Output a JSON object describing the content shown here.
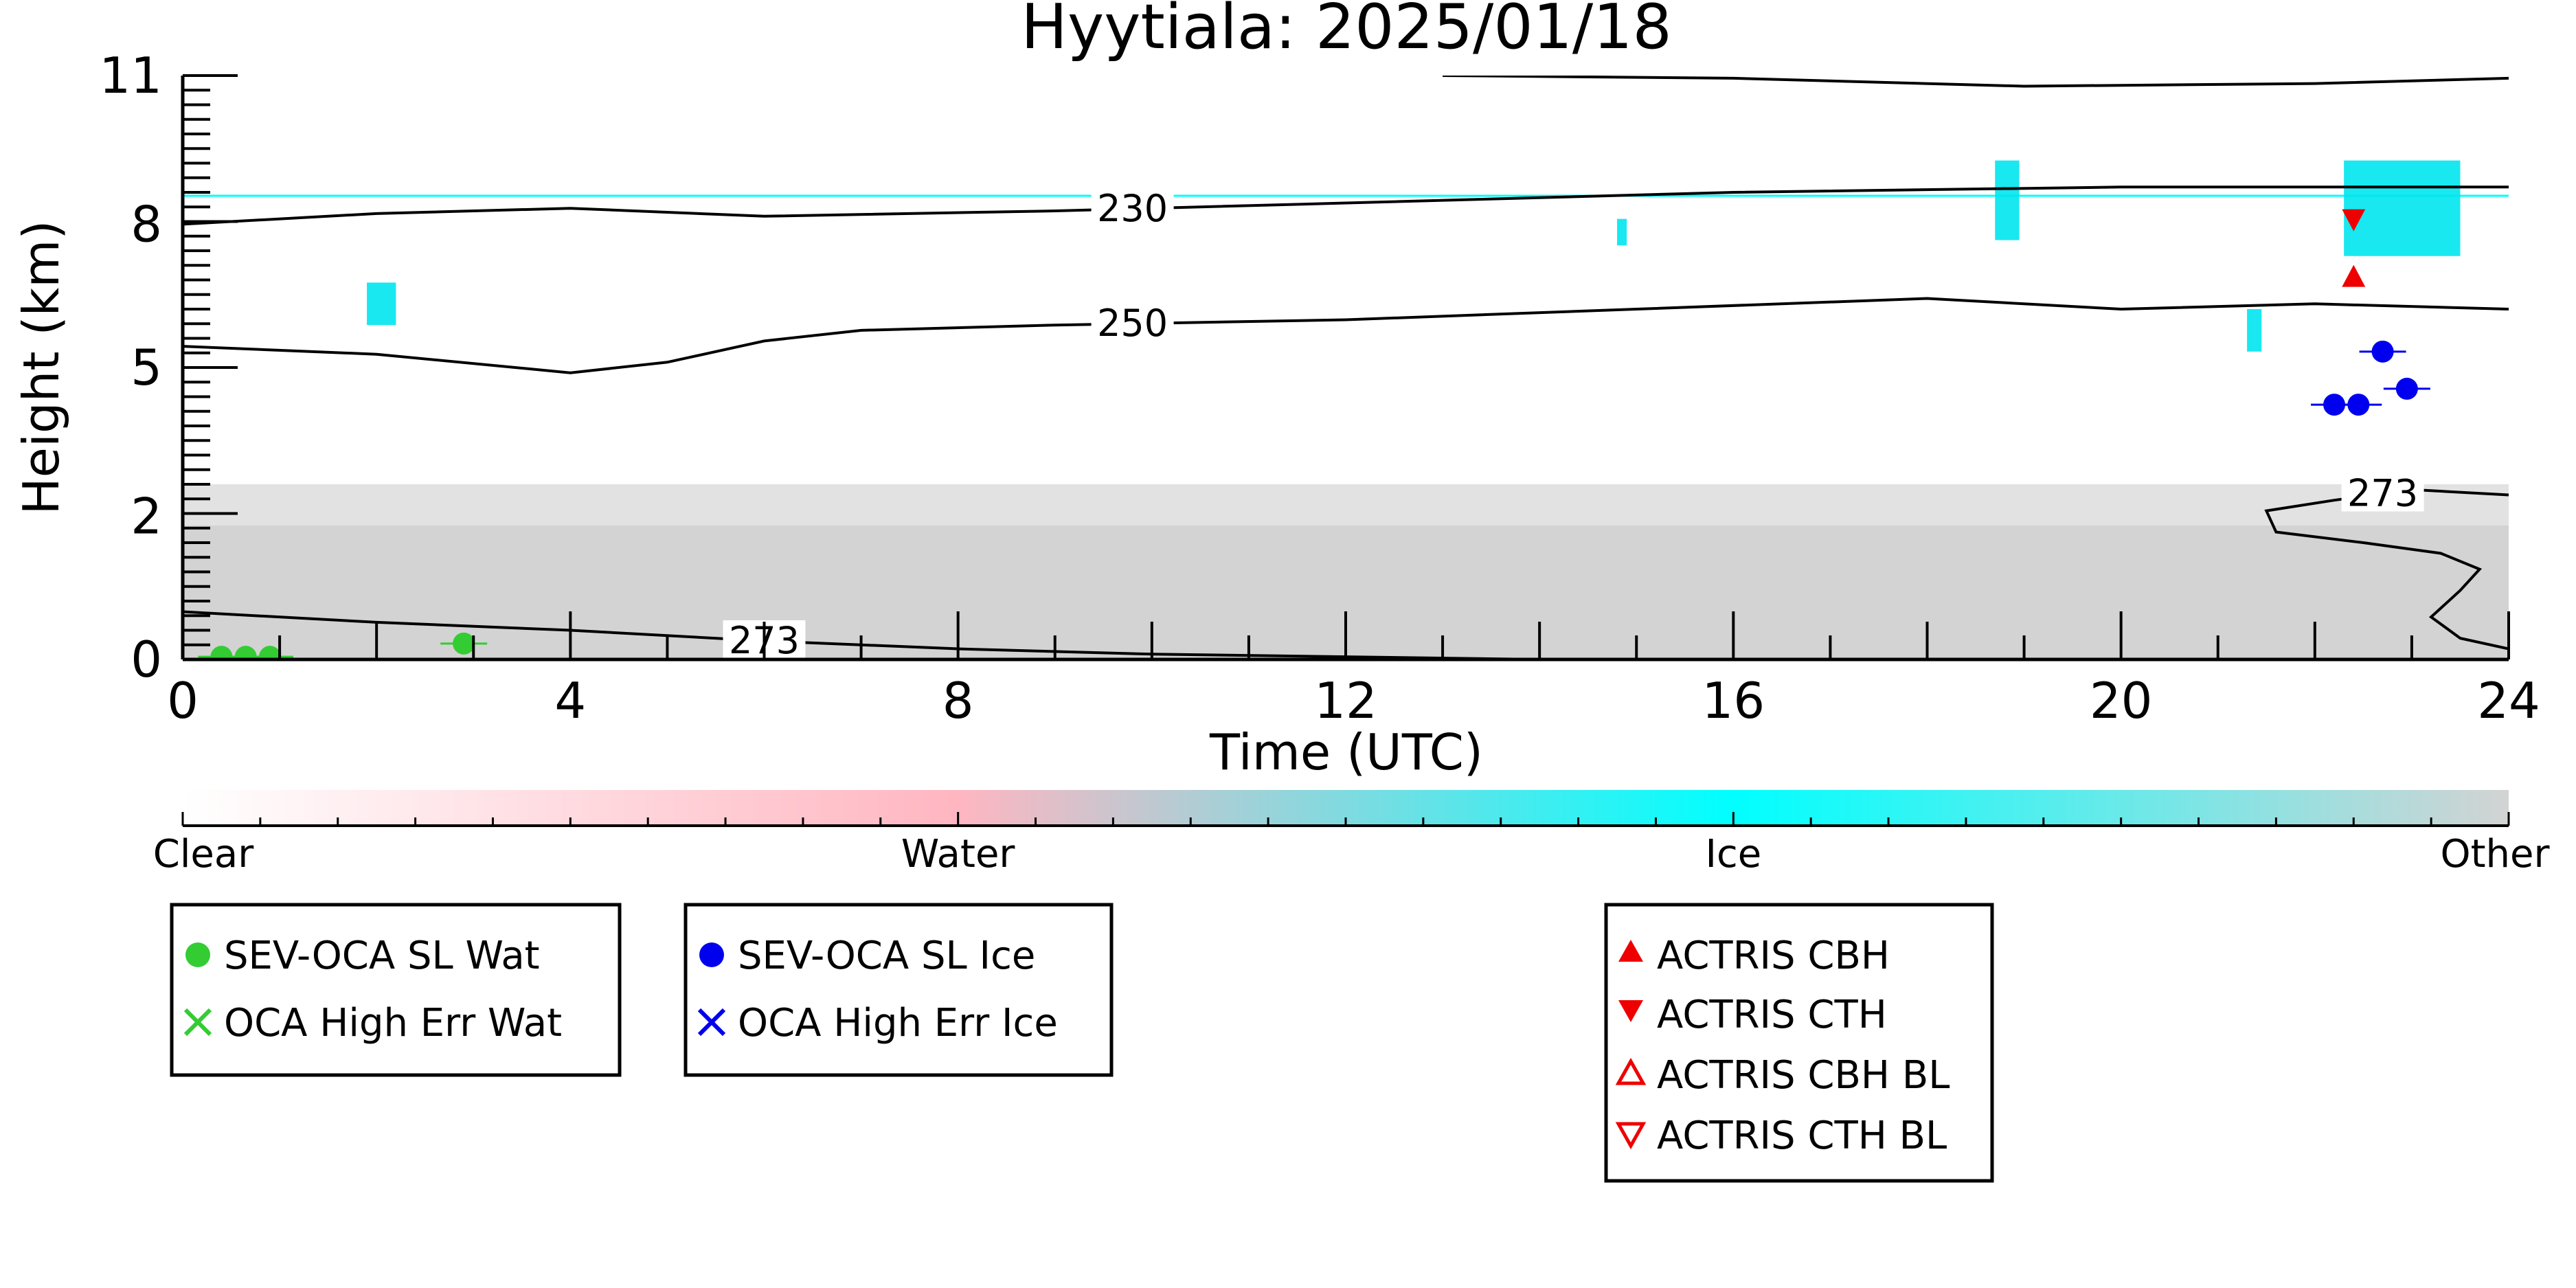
{
  "chart_data": {
    "type": "heatmap",
    "title": "Hyytiala: 2025/01/18",
    "xlabel": "Time (UTC)",
    "ylabel": "Height (km)",
    "xlim": [
      0,
      24
    ],
    "ylim": [
      0,
      11
    ],
    "x_ticks": [
      "0",
      "4",
      "8",
      "12",
      "16",
      "20",
      "24"
    ],
    "y_ticks": [
      "0",
      "2",
      "5",
      "8",
      "11"
    ],
    "y_tick_values": [
      0,
      2.7,
      5.5,
      8.2,
      11
    ],
    "colorbar": {
      "labels": [
        "Clear",
        "Water",
        "Ice",
        "Other"
      ],
      "colors": [
        "#ffffff",
        "#ffb6c1",
        "#00ffff",
        "#d3d3d3"
      ]
    },
    "contours": [
      {
        "label": "230",
        "label_x": 9.8,
        "points": [
          [
            0,
            8.2
          ],
          [
            2,
            8.4
          ],
          [
            4,
            8.5
          ],
          [
            6,
            8.35
          ],
          [
            9,
            8.45
          ],
          [
            12,
            8.6
          ],
          [
            16,
            8.8
          ],
          [
            20,
            8.9
          ],
          [
            24,
            8.9
          ]
        ]
      },
      {
        "label": "250",
        "label_x": 9.8,
        "points": [
          [
            0,
            5.9
          ],
          [
            2,
            5.75
          ],
          [
            4,
            5.4
          ],
          [
            5,
            5.6
          ],
          [
            6,
            6.0
          ],
          [
            7,
            6.2
          ],
          [
            9,
            6.3
          ],
          [
            12,
            6.4
          ],
          [
            15,
            6.6
          ],
          [
            18,
            6.8
          ],
          [
            20,
            6.6
          ],
          [
            22,
            6.7
          ],
          [
            24,
            6.6
          ]
        ]
      },
      {
        "label": "273",
        "label_x": 6.0,
        "points": [
          [
            0,
            0.9
          ],
          [
            2,
            0.7
          ],
          [
            4,
            0.55
          ],
          [
            6,
            0.35
          ],
          [
            8,
            0.2
          ],
          [
            10,
            0.1
          ],
          [
            12,
            0.05
          ],
          [
            14,
            0.0
          ]
        ]
      },
      {
        "label": "",
        "label_x": null,
        "points": [
          [
            13,
            11
          ],
          [
            16,
            10.95
          ],
          [
            19,
            10.8
          ],
          [
            22,
            10.85
          ],
          [
            24,
            10.95
          ]
        ]
      },
      {
        "label": "273",
        "label_x": 22.7,
        "points": [
          [
            24,
            3.1
          ],
          [
            23.0,
            3.2
          ],
          [
            22.2,
            3.0
          ],
          [
            21.5,
            2.8
          ],
          [
            21.6,
            2.4
          ],
          [
            22.5,
            2.2
          ],
          [
            23.3,
            2.0
          ],
          [
            23.7,
            1.7
          ],
          [
            23.5,
            1.3
          ],
          [
            23.2,
            0.8
          ],
          [
            23.5,
            0.4
          ],
          [
            24,
            0.2
          ]
        ]
      }
    ],
    "ice_patches": [
      {
        "x": 1.9,
        "y": 6.3,
        "w": 0.3,
        "h": 0.8
      },
      {
        "x": 14.8,
        "y": 7.8,
        "w": 0.1,
        "h": 0.5
      },
      {
        "x": 18.7,
        "y": 7.9,
        "w": 0.25,
        "h": 1.5
      },
      {
        "x": 22.3,
        "y": 7.6,
        "w": 1.2,
        "h": 1.8
      },
      {
        "x": 21.3,
        "y": 5.8,
        "w": 0.15,
        "h": 0.8
      }
    ],
    "series": [
      {
        "name": "SEV-OCA SL Wat",
        "marker": "circle",
        "color": "#33cc33",
        "points": [
          [
            0.4,
            0.05
          ],
          [
            0.65,
            0.05
          ],
          [
            0.9,
            0.05
          ],
          [
            2.9,
            0.3
          ]
        ]
      },
      {
        "name": "OCA High Err Wat",
        "marker": "x",
        "color": "#33cc33",
        "points": []
      },
      {
        "name": "SEV-OCA SL Ice",
        "marker": "circle",
        "color": "#0000ee",
        "points": [
          [
            22.7,
            5.8
          ],
          [
            22.2,
            4.8
          ],
          [
            22.45,
            4.8
          ],
          [
            22.95,
            5.1
          ]
        ]
      },
      {
        "name": "OCA High Err Ice",
        "marker": "x",
        "color": "#0000ee",
        "points": []
      },
      {
        "name": "ACTRIS CBH",
        "marker": "triangle-up",
        "color": "#ee0000",
        "points": [
          [
            22.4,
            7.2
          ]
        ]
      },
      {
        "name": "ACTRIS CTH",
        "marker": "triangle-down",
        "color": "#ee0000",
        "points": [
          [
            22.4,
            8.3
          ]
        ]
      },
      {
        "name": "ACTRIS CBH BL",
        "marker": "triangle-up-open",
        "color": "#ee0000",
        "points": []
      },
      {
        "name": "ACTRIS CTH BL",
        "marker": "triangle-down-open",
        "color": "#ee0000",
        "points": []
      }
    ]
  }
}
